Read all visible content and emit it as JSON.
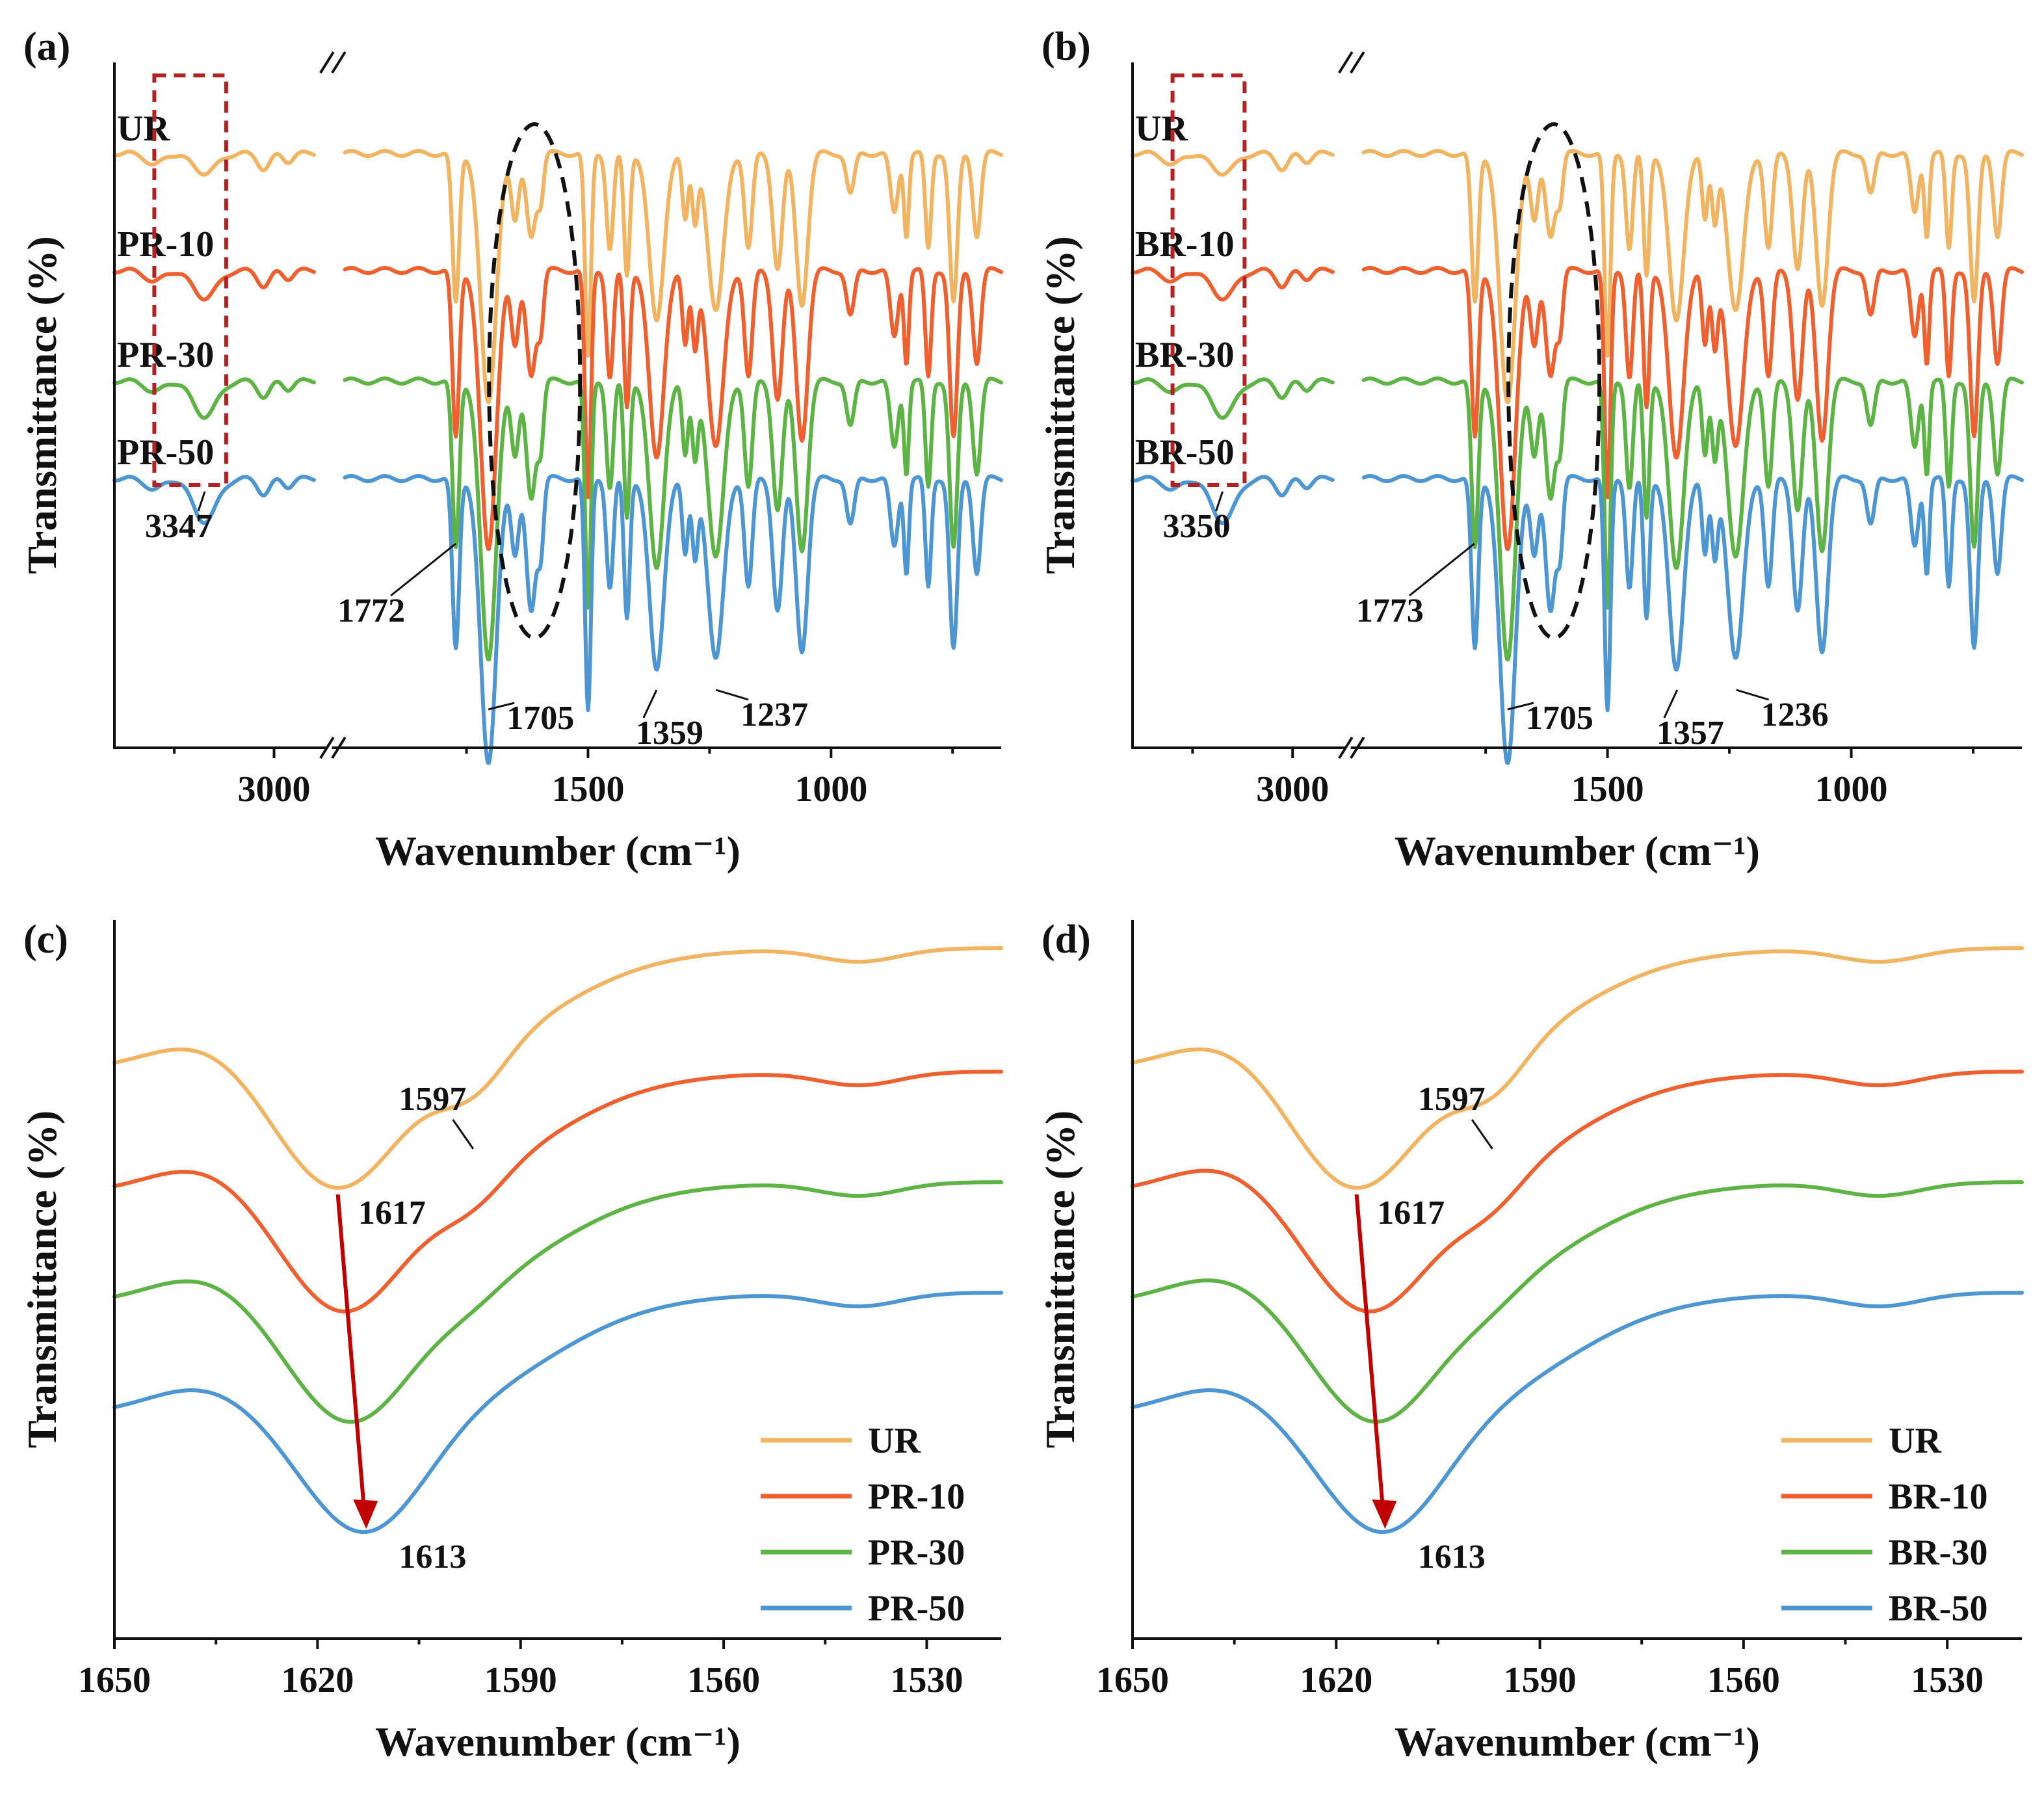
{
  "colors": {
    "UR": "#F0B462",
    "PR-10": "#EE6030",
    "BR-10": "#EE6030",
    "PR-30": "#5DB345",
    "BR-30": "#5DB345",
    "PR-50": "#4D96D2",
    "BR-50": "#4D96D2",
    "highlight_box": "#B22222",
    "shift_arrow": "#C00000",
    "ellipse": "#111111"
  },
  "chart_data": [
    {
      "panel": "(a)",
      "type": "line",
      "xlabel": "Wavenumber (cm⁻¹)",
      "ylabel": "Transmittance (%)",
      "x_axis": "broken",
      "x_ticks": [
        "3000",
        "1500",
        "1000"
      ],
      "x_segments": [
        [
          3800,
          2800
        ],
        [
          2000,
          650
        ]
      ],
      "series_labels": [
        "UR",
        "PR-10",
        "PR-30",
        "PR-50"
      ],
      "annotations": [
        "3347",
        "1772",
        "1705",
        "1359",
        "1237"
      ],
      "key_peaks": [
        3347,
        1772,
        1705,
        1359,
        1237
      ]
    },
    {
      "panel": "(b)",
      "type": "line",
      "xlabel": "Wavenumber (cm⁻¹)",
      "ylabel": "Transmittance (%)",
      "x_axis": "broken",
      "x_ticks": [
        "3000",
        "1500",
        "1000"
      ],
      "x_segments": [
        [
          3800,
          2800
        ],
        [
          2000,
          650
        ]
      ],
      "series_labels": [
        "UR",
        "BR-10",
        "BR-30",
        "BR-50"
      ],
      "annotations": [
        "3350",
        "1773",
        "1705",
        "1357",
        "1236"
      ],
      "key_peaks": [
        3350,
        1773,
        1705,
        1357,
        1236
      ]
    },
    {
      "panel": "(c)",
      "type": "line",
      "xlabel": "Wavenumber (cm⁻¹)",
      "ylabel": "Transmittance (%)",
      "xlim": [
        1650,
        1519
      ],
      "x_ticks": [
        "1650",
        "1620",
        "1590",
        "1560",
        "1530"
      ],
      "legend": [
        "UR",
        "PR-10",
        "PR-30",
        "PR-50"
      ],
      "legend_position": "bottom-right",
      "annotations": [
        "1597",
        "1617",
        "1613"
      ],
      "minima": {
        "UR": 1617,
        "PR-10": 1616,
        "PR-30": 1615,
        "PR-50": 1613
      },
      "shoulder": 1597
    },
    {
      "panel": "(d)",
      "type": "line",
      "xlabel": "Wavenumber (cm⁻¹)",
      "ylabel": "Transmittance (%)",
      "xlim": [
        1650,
        1519
      ],
      "x_ticks": [
        "1650",
        "1620",
        "1590",
        "1560",
        "1530"
      ],
      "legend": [
        "UR",
        "BR-10",
        "BR-30",
        "BR-50"
      ],
      "legend_position": "bottom-right",
      "annotations": [
        "1597",
        "1617",
        "1613"
      ],
      "minima": {
        "UR": 1617,
        "BR-10": 1615,
        "BR-30": 1614,
        "BR-50": 1613
      },
      "shoulder": 1597
    }
  ]
}
